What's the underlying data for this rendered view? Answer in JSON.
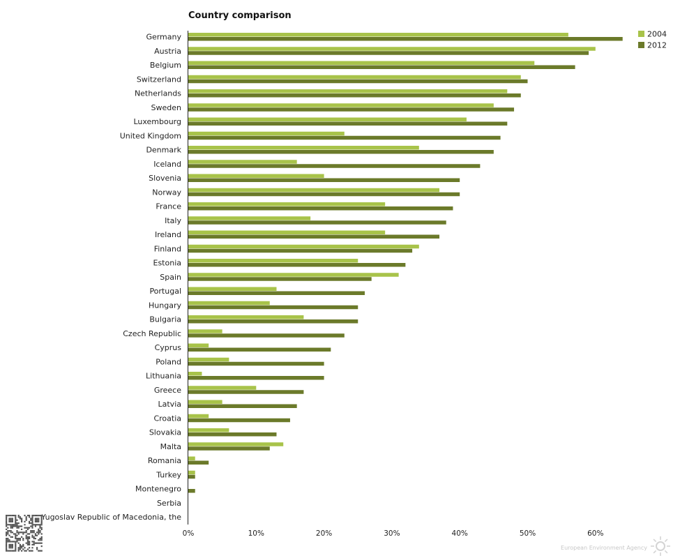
{
  "chart_data": {
    "type": "bar",
    "orientation": "horizontal",
    "title": "Country comparison",
    "xlabel": "",
    "ylabel": "",
    "xlim": [
      0,
      64
    ],
    "tick_values": [
      0,
      10,
      20,
      30,
      40,
      50,
      60
    ],
    "tick_labels": [
      "0%",
      "10%",
      "20%",
      "30%",
      "40%",
      "50%",
      "60%"
    ],
    "legend_position": "top-right",
    "categories": [
      "Germany",
      "Austria",
      "Belgium",
      "Switzerland",
      "Netherlands",
      "Sweden",
      "Luxembourg",
      "United Kingdom",
      "Denmark",
      "Iceland",
      "Slovenia",
      "Norway",
      "France",
      "Italy",
      "Ireland",
      "Finland",
      "Estonia",
      "Spain",
      "Portugal",
      "Hungary",
      "Bulgaria",
      "Czech Republic",
      "Cyprus",
      "Poland",
      "Lithuania",
      "Greece",
      "Latvia",
      "Croatia",
      "Slovakia",
      "Malta",
      "Romania",
      "Turkey",
      "Montenegro",
      "Serbia",
      "Former Yugoslav Republic of Macedonia, the"
    ],
    "series": [
      {
        "name": "2004",
        "color": "#a8c34a",
        "values": [
          56,
          60,
          51,
          49,
          47,
          45,
          41,
          23,
          34,
          16,
          20,
          37,
          29,
          18,
          29,
          34,
          25,
          31,
          13,
          12,
          17,
          5,
          3,
          6,
          2,
          10,
          5,
          3,
          6,
          14,
          1,
          1,
          0,
          0,
          0
        ]
      },
      {
        "name": "2012",
        "color": "#6b7a2a",
        "values": [
          64,
          59,
          57,
          50,
          49,
          48,
          47,
          46,
          45,
          43,
          40,
          40,
          39,
          38,
          37,
          33,
          32,
          27,
          26,
          25,
          25,
          23,
          21,
          20,
          20,
          17,
          16,
          15,
          13,
          12,
          3,
          1,
          1,
          0,
          0
        ]
      }
    ]
  },
  "footer": {
    "credit": "European Environment Agency",
    "qr_icon": "qr-code-icon",
    "logo_icon": "sun-logo-icon"
  }
}
